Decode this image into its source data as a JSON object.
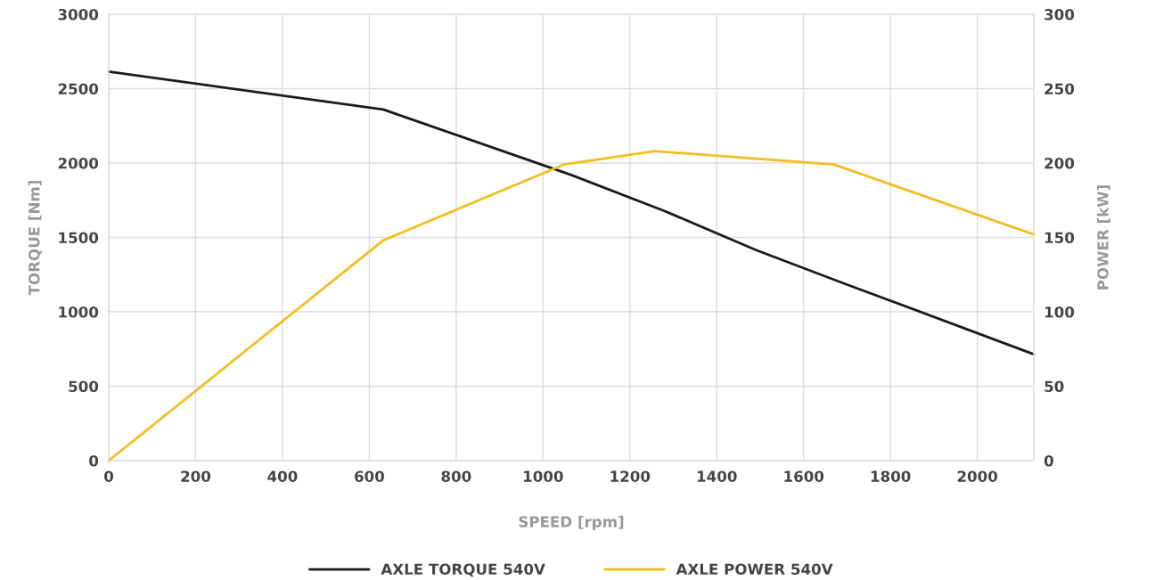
{
  "chart_data": {
    "type": "line",
    "xlabel": "SPEED [rpm]",
    "ylabel": "TORQUE [Nm]",
    "y2label": "POWER [kW]",
    "xlim": [
      0,
      2130
    ],
    "xticks": [
      0,
      200,
      400,
      600,
      800,
      1000,
      1200,
      1400,
      1600,
      1800,
      2000
    ],
    "ylim": [
      0,
      3000
    ],
    "yticks": [
      0,
      500,
      1000,
      1500,
      2000,
      2500,
      3000
    ],
    "y2lim": [
      0,
      300
    ],
    "y2ticks": [
      0,
      50,
      100,
      150,
      200,
      250,
      300
    ],
    "grid": true,
    "legend": "bottom",
    "line_style": "solid",
    "marker": "none",
    "series": [
      {
        "name": "AXLE TORQUE 540V",
        "color": "#1a1a1a",
        "x": [
          0,
          632,
          1065,
          1278,
          1491,
          1703,
          2130
        ],
        "values": [
          2615,
          2360,
          1920,
          1680,
          1415,
          1180,
          715
        ]
      },
      {
        "name": "AXLE POWER 540V",
        "color": "#f5bd1f",
        "axis": "y2",
        "x": [
          0,
          632,
          1048,
          1257,
          1670,
          2130
        ],
        "values": [
          0,
          148,
          199,
          208,
          199,
          152
        ]
      }
    ]
  }
}
